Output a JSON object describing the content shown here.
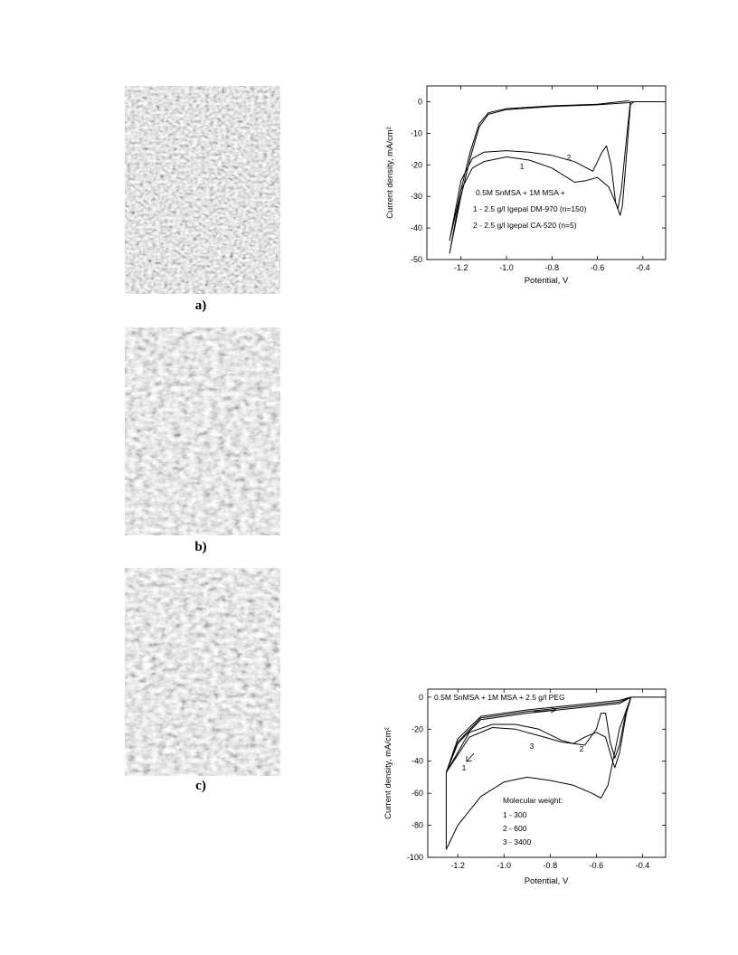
{
  "panels": {
    "labels": [
      "a)",
      "b)",
      "c)"
    ]
  },
  "chart_data": [
    {
      "type": "line",
      "xlabel": "Potential, V",
      "ylabel": "Current density, mA/cm²",
      "xlim": [
        -1.35,
        -0.3
      ],
      "ylim": [
        -50,
        5
      ],
      "xticks": [
        -1.2,
        {
          "value": -1,
          "label": "-1.0"
        },
        -0.8,
        -0.6,
        -0.4
      ],
      "yticks": [
        0,
        -10,
        -20,
        -30,
        -40,
        -50
      ],
      "annotations": [
        "0.5M SnMSA + 1M MSA +",
        "1 - 2.5 g/l Igepal DM-970 (n=150)",
        "2 - 2.5 g/l Igepal CA-520 (n=5)"
      ],
      "series": [
        {
          "name": "1",
          "color": "#000000",
          "x": [
            -0.3,
            -0.45,
            -0.46,
            -0.6,
            -0.8,
            -1.0,
            -1.08,
            -1.12,
            -1.16,
            -1.2,
            -1.25,
            -1.24,
            -1.2,
            -1.15,
            -1.1,
            -1.0,
            -0.9,
            -0.8,
            -0.7,
            -0.65,
            -0.6,
            -0.55,
            -0.52,
            -0.5,
            -0.49,
            -0.47,
            -0.455,
            -0.44,
            -0.3
          ],
          "values": [
            0,
            0,
            -0.3,
            -1,
            -1.5,
            -2.5,
            -4,
            -8,
            -18,
            -30,
            -48,
            -44,
            -28,
            -21,
            -19,
            -17.5,
            -18.5,
            -21,
            -25.5,
            -25,
            -24,
            -27,
            -32,
            -36,
            -33,
            -15,
            -1,
            0,
            0
          ]
        },
        {
          "name": "2",
          "color": "#000000",
          "x": [
            -0.46,
            -0.6,
            -0.8,
            -1.0,
            -1.08,
            -1.12,
            -1.16,
            -1.2,
            -1.25,
            -1.2,
            -1.15,
            -1.1,
            -1.0,
            -0.9,
            -0.8,
            -0.7,
            -0.62,
            -0.58,
            -0.56,
            -0.54,
            -0.52,
            -0.51,
            -0.495,
            -0.47,
            -0.455,
            -0.3
          ],
          "values": [
            0.3,
            -0.8,
            -1.3,
            -2.2,
            -3.5,
            -7,
            -16,
            -28,
            -44,
            -25,
            -18,
            -16,
            -15.5,
            -16,
            -17,
            -19,
            -22,
            -16,
            -14,
            -20,
            -32,
            -34,
            -28,
            -10,
            0,
            0
          ]
        }
      ]
    },
    {
      "type": "line",
      "xlabel": "Potential, V",
      "ylabel": "Current density, mA/cm²",
      "xlim": [
        -1.33,
        -0.3
      ],
      "ylim": [
        -100,
        5
      ],
      "xticks": [
        -1.2,
        {
          "value": -1,
          "label": "-1.0"
        },
        -0.8,
        -0.6,
        -0.4
      ],
      "yticks": [
        0,
        -20,
        -40,
        -60,
        -80,
        -100
      ],
      "annotations": [
        "0.5M SnMSA + 1M MSA + 2.5 g/l PEG",
        "Molecular weight:",
        "1 - 300",
        "2 - 600",
        "3 - 3400"
      ],
      "series": [
        {
          "name": "1",
          "color": "#000000",
          "x": [
            -0.3,
            -0.45,
            -0.5,
            -0.7,
            -0.9,
            -1.1,
            -1.2,
            -1.25,
            -1.25,
            -1.2,
            -1.1,
            -1.0,
            -0.9,
            -0.8,
            -0.7,
            -0.62,
            -0.58,
            -0.55,
            -0.5,
            -0.45
          ],
          "values": [
            0,
            0,
            -3,
            -6,
            -9,
            -13,
            -28,
            -47,
            -95,
            -80,
            -62,
            -53,
            -50,
            -52,
            -55,
            -60,
            -63,
            -55,
            -20,
            0
          ]
        },
        {
          "name": "2",
          "color": "#000000",
          "x": [
            -0.45,
            -0.5,
            -0.7,
            -0.9,
            -1.1,
            -1.2,
            -1.25,
            -1.15,
            -1.05,
            -0.95,
            -0.85,
            -0.75,
            -0.65,
            -0.6,
            -0.58,
            -0.56,
            -0.54,
            -0.52,
            -0.5,
            -0.47,
            -0.45
          ],
          "values": [
            0,
            -2,
            -5,
            -8,
            -12,
            -26,
            -47,
            -25,
            -19,
            -20,
            -24,
            -28,
            -30,
            -20,
            -10,
            -10,
            -28,
            -38,
            -30,
            -8,
            0
          ]
        },
        {
          "name": "3",
          "color": "#000000",
          "x": [
            -0.45,
            -0.5,
            -0.7,
            -0.9,
            -1.1,
            -1.2,
            -1.25,
            -1.15,
            -1.05,
            -0.95,
            -0.85,
            -0.75,
            -0.7,
            -0.65,
            -0.6,
            -0.56,
            -0.53,
            -0.52,
            -0.5,
            -0.47,
            -0.45
          ],
          "values": [
            0,
            -4,
            -7,
            -10,
            -14,
            -29,
            -47,
            -22,
            -17,
            -17,
            -20,
            -27,
            -29,
            -25,
            -22,
            -25,
            -40,
            -44,
            -35,
            -10,
            0
          ]
        }
      ]
    }
  ]
}
